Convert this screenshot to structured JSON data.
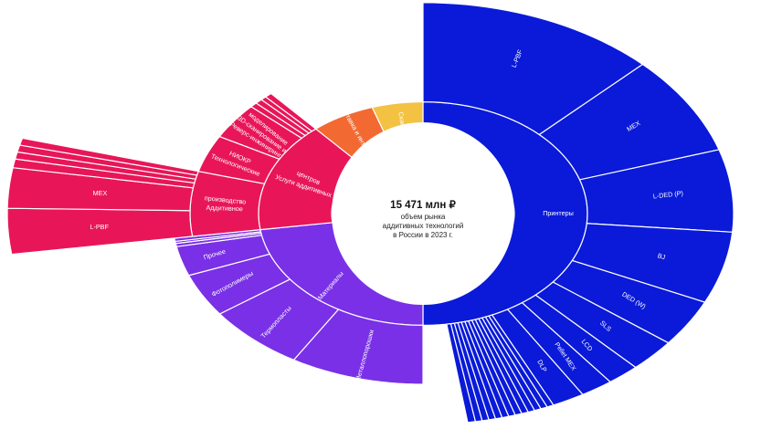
{
  "chart_data": {
    "type": "sunburst",
    "center": {
      "value": "15 471 млн ₽",
      "lines": [
        "объем рынка",
        "аддитивных технологий",
        "в России в 2023 г."
      ]
    },
    "colors": {
      "printers": "#0a1ad8",
      "materials": "#7a30e6",
      "services": "#e81658",
      "integration": "#f26a32",
      "scanners": "#f4c242"
    },
    "inner": [
      {
        "key": "printers",
        "label": "Принтеры",
        "value": 50.0
      },
      {
        "key": "materials",
        "label": "Материалы",
        "value": 22.7
      },
      {
        "key": "services",
        "label": "Услуги аддитивных центров",
        "value": 16.0
      },
      {
        "key": "integration",
        "label": "Поставка и интеграция",
        "value": 6.3
      },
      {
        "key": "scanners",
        "label": "Сканеры",
        "value": 5.0
      }
    ],
    "outer": [
      {
        "parent": "printers",
        "label": "L-PBF",
        "value": 12.5
      },
      {
        "parent": "printers",
        "label": "MEX",
        "value": 7.6
      },
      {
        "parent": "printers",
        "label": "L-DED (P)",
        "value": 6.3
      },
      {
        "parent": "printers",
        "label": "BJ",
        "value": 5.5
      },
      {
        "parent": "printers",
        "label": "DED (W)",
        "value": 3.6
      },
      {
        "parent": "printers",
        "label": "SLS",
        "value": 2.5
      },
      {
        "parent": "printers",
        "label": "LCD",
        "value": 1.7
      },
      {
        "parent": "printers",
        "label": "Pellet MEX",
        "value": 1.7
      },
      {
        "parent": "printers",
        "label": "DLP",
        "value": 1.7
      },
      {
        "parent": "printers",
        "label": "",
        "value": 0.35
      },
      {
        "parent": "printers",
        "label": "",
        "value": 0.35
      },
      {
        "parent": "printers",
        "label": "",
        "value": 0.35
      },
      {
        "parent": "printers",
        "label": "",
        "value": 0.35
      },
      {
        "parent": "printers",
        "label": "",
        "value": 0.35
      },
      {
        "parent": "printers",
        "label": "",
        "value": 0.35
      },
      {
        "parent": "printers",
        "label": "",
        "value": 0.35
      },
      {
        "parent": "printers",
        "label": "",
        "value": 0.35
      },
      {
        "parent": "printers",
        "label": "",
        "value": 0.35
      },
      {
        "parent": "printers",
        "label": "",
        "value": 0.35
      },
      {
        "parent": "printers",
        "label": "",
        "value": 0.35
      },
      {
        "parent": "printers",
        "label": "",
        "value": 0.35
      },
      {
        "parent": "printers",
        "label": "",
        "value": 0.4
      },
      {
        "parent": "materials",
        "label": "Металлопорошки",
        "value": 8.6
      },
      {
        "parent": "materials",
        "label": "Термопласты",
        "value": 6.4
      },
      {
        "parent": "materials",
        "label": "Фотополимеры",
        "value": 4.1
      },
      {
        "parent": "materials",
        "label": "Прочее",
        "value": 2.8
      },
      {
        "parent": "materials",
        "label": "",
        "value": 0.3
      },
      {
        "parent": "materials",
        "label": "",
        "value": 0.2
      },
      {
        "parent": "materials",
        "label": "",
        "value": 0.3
      },
      {
        "parent": "services",
        "label": "Аддитивное производство",
        "value": 6.6
      },
      {
        "parent": "services",
        "label": "Технологические НИОКР",
        "value": 3.8
      },
      {
        "parent": "services",
        "label": "Реверс-инжиниринг, 3D-сканирование и моделирование",
        "value": 3.7
      },
      {
        "parent": "services",
        "label": "",
        "value": 0.5
      },
      {
        "parent": "services",
        "label": "",
        "value": 0.5
      },
      {
        "parent": "services",
        "label": "",
        "value": 0.4
      },
      {
        "parent": "services",
        "label": "",
        "value": 0.5
      }
    ],
    "third": [
      {
        "parent": "Аддитивное производство",
        "label": "L-PBF",
        "value": 2.6
      },
      {
        "parent": "Аддитивное производство",
        "label": "MEX",
        "value": 2.3
      },
      {
        "parent": "Аддитивное производство",
        "label": "",
        "value": 0.5
      },
      {
        "parent": "Аддитивное производство",
        "label": "",
        "value": 0.4
      },
      {
        "parent": "Аддитивное производство",
        "label": "",
        "value": 0.4
      },
      {
        "parent": "Аддитивное производство",
        "label": "",
        "value": 0.4
      }
    ]
  }
}
